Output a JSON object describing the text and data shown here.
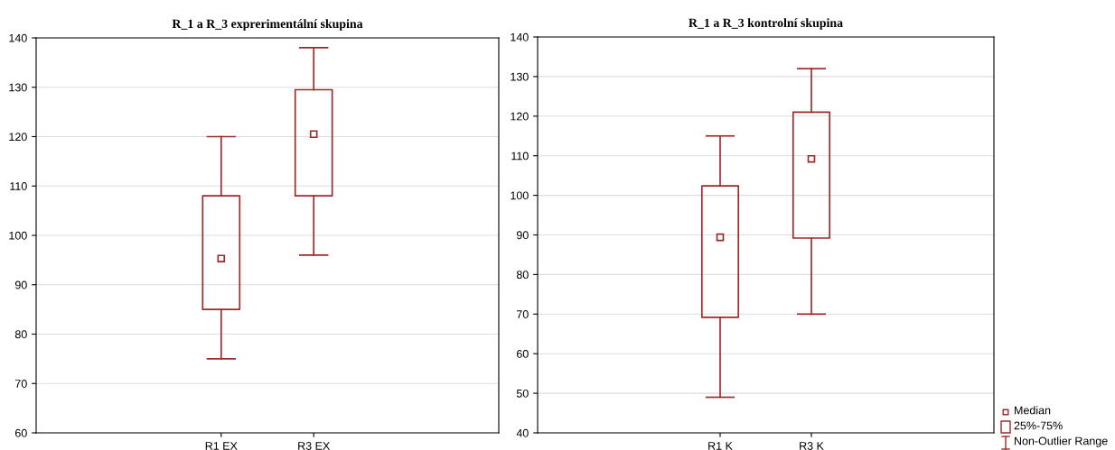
{
  "chart_data": [
    {
      "type": "box",
      "title": "R_1 a R_3 exprerimentální skupina",
      "categories": [
        "R1 EX",
        "R3 EX"
      ],
      "color": "#a02828",
      "boxes": [
        {
          "low": 75,
          "q1": 85,
          "median": 95.3,
          "q3": 108,
          "high": 120
        },
        {
          "low": 96,
          "q1": 108,
          "median": 120.5,
          "q3": 129.5,
          "high": 138
        }
      ],
      "ylim": [
        60,
        140
      ],
      "yticks": [
        60,
        70,
        80,
        90,
        100,
        110,
        120,
        130,
        140
      ],
      "grid": "y",
      "marker": "square"
    },
    {
      "type": "box",
      "title": "R_1 a R_3 kontrolní skupina",
      "categories": [
        "R1 K",
        "R3 K"
      ],
      "color": "#a02828",
      "boxes": [
        {
          "low": 49,
          "q1": 69.2,
          "median": 89.4,
          "q3": 102.4,
          "high": 115
        },
        {
          "low": 70,
          "q1": 89.2,
          "median": 109.2,
          "q3": 121,
          "high": 132
        }
      ],
      "ylim": [
        40,
        140
      ],
      "yticks": [
        40,
        50,
        60,
        70,
        80,
        90,
        100,
        110,
        120,
        130,
        140
      ],
      "grid": "y",
      "marker": "square",
      "annotations": [
        "Median",
        "25%-75%",
        "Non-Outlier Range"
      ]
    }
  ]
}
